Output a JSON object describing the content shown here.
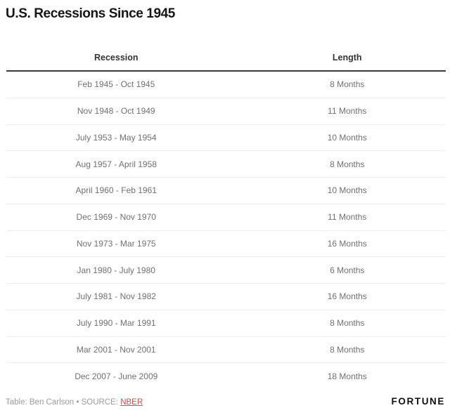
{
  "title": "U.S. Recessions Since 1945",
  "table": {
    "headers": {
      "recession": "Recession",
      "length": "Length"
    },
    "rows": [
      {
        "recession": "Feb 1945 - Oct 1945",
        "length": "8 Months"
      },
      {
        "recession": "Nov 1948 - Oct 1949",
        "length": "11 Months"
      },
      {
        "recession": "July 1953 - May 1954",
        "length": "10 Months"
      },
      {
        "recession": "Aug 1957 - April 1958",
        "length": "8 Months"
      },
      {
        "recession": "April 1960 - Feb 1961",
        "length": "10 Months"
      },
      {
        "recession": "Dec 1969 - Nov 1970",
        "length": "11 Months"
      },
      {
        "recession": "Nov 1973 - Mar 1975",
        "length": "16 Months"
      },
      {
        "recession": "Jan 1980 - July 1980",
        "length": "6 Months"
      },
      {
        "recession": "July 1981 - Nov 1982",
        "length": "16 Months"
      },
      {
        "recession": "July 1990 - Mar 1991",
        "length": "8 Months"
      },
      {
        "recession": "Mar 2001 - Nov 2001",
        "length": "8 Months"
      },
      {
        "recession": "Dec 2007 - June 2009",
        "length": "18 Months"
      }
    ]
  },
  "chart_data": {
    "type": "table",
    "title": "U.S. Recessions Since 1945",
    "columns": [
      "Recession",
      "Length"
    ],
    "rows": [
      [
        "Feb 1945 - Oct 1945",
        "8 Months"
      ],
      [
        "Nov 1948 - Oct 1949",
        "11 Months"
      ],
      [
        "July 1953 - May 1954",
        "10 Months"
      ],
      [
        "Aug 1957 - April 1958",
        "8 Months"
      ],
      [
        "April 1960 - Feb 1961",
        "10 Months"
      ],
      [
        "Dec 1969 - Nov 1970",
        "11 Months"
      ],
      [
        "Nov 1973 - Mar 1975",
        "16 Months"
      ],
      [
        "Jan 1980 - July 1980",
        "6 Months"
      ],
      [
        "July 1981 - Nov 1982",
        "16 Months"
      ],
      [
        "July 1990 - Mar 1991",
        "8 Months"
      ],
      [
        "Mar 2001 - Nov 2001",
        "8 Months"
      ],
      [
        "Dec 2007 - June 2009",
        "18 Months"
      ]
    ],
    "length_months_values": [
      8,
      11,
      10,
      8,
      10,
      11,
      16,
      6,
      16,
      8,
      8,
      18
    ]
  },
  "footer": {
    "credit_prefix": "Table: Ben Carlson • SOURCE: ",
    "source_link": "NBER",
    "brand": "FORTUNE"
  },
  "colors": {
    "title_text": "#151515",
    "header_text": "#333333",
    "body_text": "#707070",
    "header_rule": "#3a3a3a",
    "row_rule": "#ececec",
    "footer_text": "#9b9b9b",
    "source_link": "#c0514d",
    "brand_text": "#111111",
    "background": "#ffffff"
  }
}
